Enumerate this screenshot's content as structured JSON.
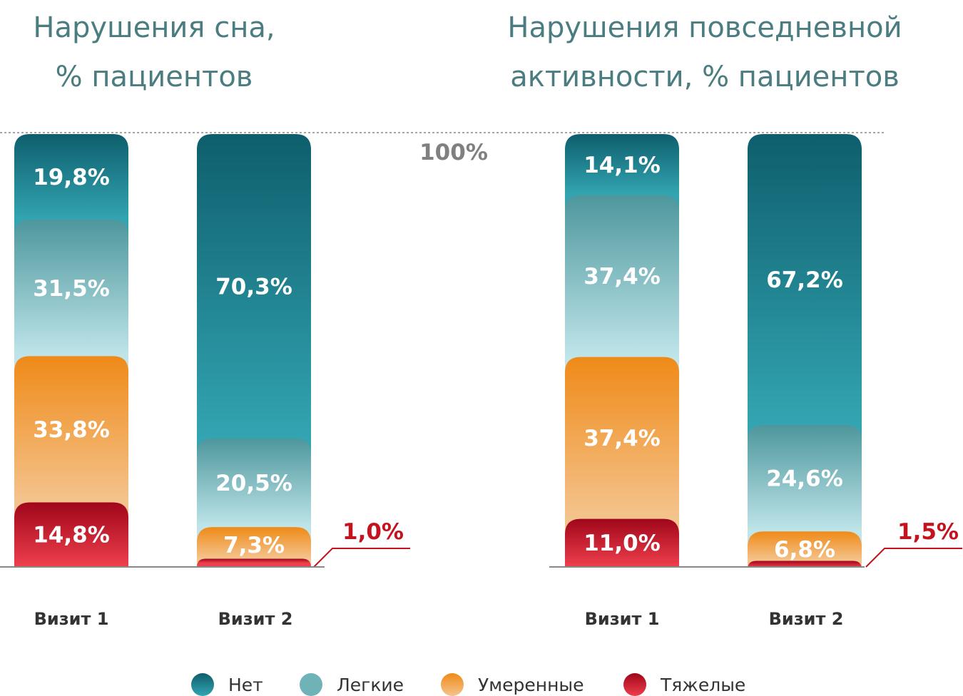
{
  "chart_data": [
    {
      "type": "bar",
      "stacked": true,
      "title": [
        "Нарушения сна,",
        "% пациентов"
      ],
      "categories": [
        "Визит 1",
        "Визит 2"
      ],
      "ylim": [
        0,
        100
      ],
      "reference_label": "100%",
      "series": [
        {
          "name": "Нет",
          "values": [
            19.8,
            70.3
          ],
          "labels": [
            "19,8%",
            "70,3%"
          ]
        },
        {
          "name": "Легкие",
          "values": [
            31.5,
            20.5
          ],
          "labels": [
            "31,5%",
            "20,5%"
          ]
        },
        {
          "name": "Умеренные",
          "values": [
            33.8,
            7.3
          ],
          "labels": [
            "33,8%",
            "7,3%"
          ]
        },
        {
          "name": "Тяжелые",
          "values": [
            14.8,
            1.0
          ],
          "labels": [
            "14,8%",
            "1,0%"
          ]
        }
      ]
    },
    {
      "type": "bar",
      "stacked": true,
      "title": [
        "Нарушения повседневной",
        "активности, % пациентов"
      ],
      "categories": [
        "Визит 1",
        "Визит 2"
      ],
      "ylim": [
        0,
        100
      ],
      "series": [
        {
          "name": "Нет",
          "values": [
            14.1,
            67.2
          ],
          "labels": [
            "14,1%",
            "67,2%"
          ]
        },
        {
          "name": "Легкие",
          "values": [
            37.4,
            24.6
          ],
          "labels": [
            "37,4%",
            "24,6%"
          ]
        },
        {
          "name": "Умеренные",
          "values": [
            37.4,
            6.8
          ],
          "labels": [
            "37,4%",
            "6,8%"
          ]
        },
        {
          "name": "Тяжелые",
          "values": [
            11.0,
            1.5
          ],
          "labels": [
            "11,0%",
            "1,5%"
          ]
        }
      ]
    }
  ],
  "legend": {
    "position": "bottom",
    "items": [
      "Нет",
      "Легкие",
      "Умеренные",
      "Тяжелые"
    ]
  },
  "colors": {
    "Нет": [
      "#0e5e6c",
      "#33a5b2"
    ],
    "Легкие": [
      "#4d979c",
      "#bfe5ea"
    ],
    "Умеренные": [
      "#ef8a18",
      "#f4c48e"
    ],
    "Тяжелые": [
      "#a0061a",
      "#ee3f4c"
    ]
  }
}
